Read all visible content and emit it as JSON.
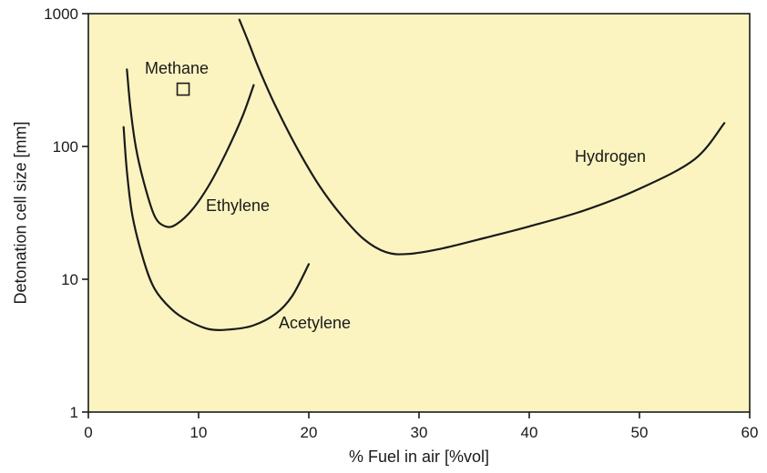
{
  "chart_data": {
    "type": "line",
    "title": "",
    "xlabel": "% Fuel in air [%vol]",
    "ylabel": "Detonation cell size [mm]",
    "xlim": [
      0,
      60
    ],
    "ylim": [
      1,
      1000
    ],
    "yscale": "log",
    "xticks": [
      0,
      10,
      20,
      30,
      40,
      50,
      60
    ],
    "xtick_labels": [
      "0",
      "10",
      "20",
      "30",
      "40",
      "50",
      "60"
    ],
    "yticks": [
      1,
      10,
      100,
      1000
    ],
    "ytick_labels": [
      "1",
      "10",
      "100",
      "1000"
    ],
    "grid": false,
    "legend": "none",
    "colors": {
      "plot_background": "#fbf4c0",
      "line": "#1a1a1a",
      "axes": "#1a1a1a"
    },
    "series": [
      {
        "name": "Hydrogen",
        "x": [
          13.7,
          14.5,
          15.5,
          17,
          19,
          21,
          23,
          25,
          27,
          29,
          32,
          36,
          40,
          45,
          50,
          55,
          57.7
        ],
        "y": [
          900,
          620,
          380,
          200,
          95,
          50,
          30,
          20,
          16,
          15.5,
          17,
          20.5,
          25,
          33,
          48,
          80,
          150
        ]
      },
      {
        "name": "Ethylene",
        "x": [
          3.5,
          3.8,
          4.3,
          5,
          6,
          7,
          8,
          9.5,
          11,
          12.5,
          14,
          15
        ],
        "y": [
          380,
          200,
          100,
          55,
          30,
          25,
          26,
          34,
          52,
          90,
          170,
          290
        ]
      },
      {
        "name": "Acetylene",
        "x": [
          3.2,
          3.5,
          4,
          5,
          6,
          7.5,
          9,
          11,
          13,
          15,
          17,
          18.5,
          20
        ],
        "y": [
          140,
          65,
          30,
          14,
          8.5,
          6,
          4.9,
          4.2,
          4.2,
          4.5,
          5.5,
          7.5,
          13
        ]
      }
    ],
    "markers": [
      {
        "name": "Methane",
        "x": 8.6,
        "y": 270,
        "shape": "square"
      }
    ]
  }
}
